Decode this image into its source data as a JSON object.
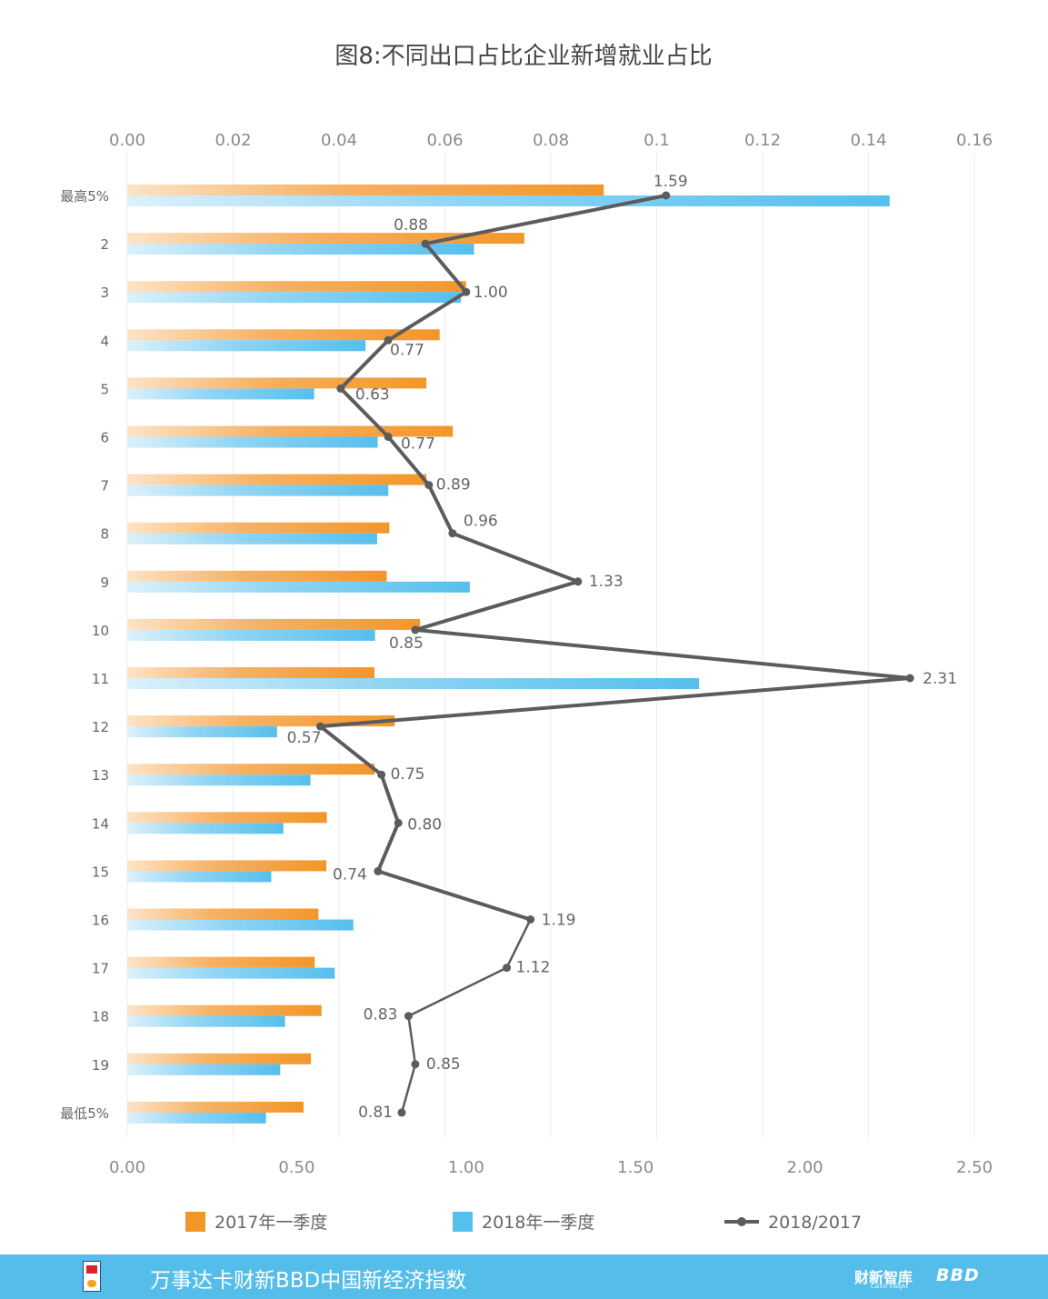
{
  "chart_data": {
    "type": "bar",
    "orientation": "horizontal",
    "title": "图8:不同出口占比企业新增就业占比",
    "categories": [
      "最高5%",
      "2",
      "3",
      "4",
      "5",
      "6",
      "7",
      "8",
      "9",
      "10",
      "11",
      "12",
      "13",
      "14",
      "15",
      "16",
      "17",
      "18",
      "19",
      "最低5%"
    ],
    "series": [
      {
        "name": "2017年一季度",
        "type": "bar",
        "axis": "top",
        "color": "#f39628",
        "values": [
          0.09,
          0.075,
          0.064,
          0.059,
          0.0565,
          0.0615,
          0.0565,
          0.0495,
          0.049,
          0.0553,
          0.0467,
          0.0505,
          0.0467,
          0.0377,
          0.0376,
          0.0361,
          0.0354,
          0.0367,
          0.0347,
          0.0333
        ]
      },
      {
        "name": "2018年一季度",
        "type": "bar",
        "axis": "top",
        "color": "#55bfed",
        "values": [
          0.144,
          0.0655,
          0.063,
          0.045,
          0.0353,
          0.0473,
          0.0493,
          0.0472,
          0.0647,
          0.0468,
          0.108,
          0.0283,
          0.0346,
          0.0295,
          0.0272,
          0.0427,
          0.0392,
          0.0298,
          0.0289,
          0.0262
        ]
      },
      {
        "name": "2018/2017",
        "type": "line",
        "axis": "bottom",
        "color": "#5c5c5c",
        "values": [
          1.59,
          0.88,
          1.0,
          0.77,
          0.63,
          0.77,
          0.89,
          0.96,
          1.33,
          0.85,
          2.31,
          0.57,
          0.75,
          0.8,
          0.74,
          1.19,
          1.12,
          0.83,
          0.85,
          0.81
        ],
        "labels": [
          "1.59",
          "0.88",
          "1.00",
          "0.77",
          "0.63",
          "0.77",
          "0.89",
          "0.96",
          "1.33",
          "0.85",
          "2.31",
          "0.57",
          "0.75",
          "0.80",
          "0.74",
          "1.19",
          "1.12",
          "0.83",
          "0.85",
          "0.81"
        ]
      }
    ],
    "top_axis": {
      "range": [
        0,
        0.16
      ],
      "ticks": [
        "0.00",
        "0.02",
        "0.04",
        "0.06",
        "0.08",
        "0.1",
        "0.12",
        "0.14",
        "0.16"
      ]
    },
    "bottom_axis": {
      "range": [
        0,
        2.5
      ],
      "ticks": [
        "0.00",
        "0.50",
        "1.00",
        "1.50",
        "2.00",
        "2.50"
      ]
    },
    "grid": true,
    "legend_position": "bottom"
  },
  "colors": {
    "bar2017": "#f39628",
    "bar2018": "#55bfed",
    "line": "#5c5c5c",
    "footer_bg": "#54bde9"
  },
  "footer": {
    "title": "万事达卡财新BBD中国新经济指数",
    "brand1": "财新智库",
    "brand1_sub": "Caixin Insight",
    "brand2": "BBD",
    "logo_icon": "nei-index-logo-icon"
  }
}
